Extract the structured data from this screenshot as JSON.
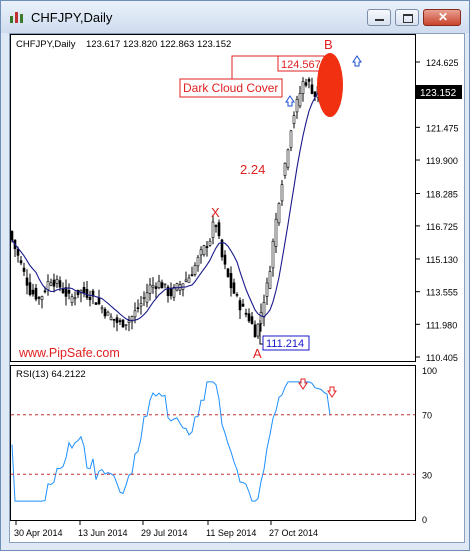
{
  "window": {
    "title": "CHFJPY,Daily"
  },
  "chart_data": [
    {
      "type": "candlestick",
      "header": "CHFJPY,Daily",
      "ohlc_label": "123.617 123.820 122.863 123.152",
      "y_ticks": [
        "124.625",
        "123.152",
        "121.475",
        "119.900",
        "118.285",
        "116.725",
        "115.130",
        "113.555",
        "111.980",
        "110.405"
      ],
      "x_ticks": [
        "30 Apr 2014",
        "13 Jun 2014",
        "29 Jul 2014",
        "11 Sep 2014",
        "27 Oct 2014"
      ],
      "current_price": 123.152,
      "annotations": {
        "pattern": "Dark Cloud Cover",
        "high_price": "124.567",
        "low_price": "111.214",
        "point_b": "B",
        "point_x": "X",
        "point_a": "A",
        "ratio": "2.24"
      },
      "watermark": "www.PipSafe.com",
      "moving_average": "blue line"
    },
    {
      "type": "line",
      "indicator_label": "RSI(13) 64.2122",
      "y_ticks": [
        "100",
        "70",
        "30",
        "0"
      ],
      "levels": [
        70,
        30
      ]
    }
  ],
  "colors": {
    "candles": "#000000",
    "ma": "#1a1a8c",
    "rsi": "#1e90ff",
    "accent": "#e02020",
    "level": "#c03030",
    "grid": "#000000"
  }
}
